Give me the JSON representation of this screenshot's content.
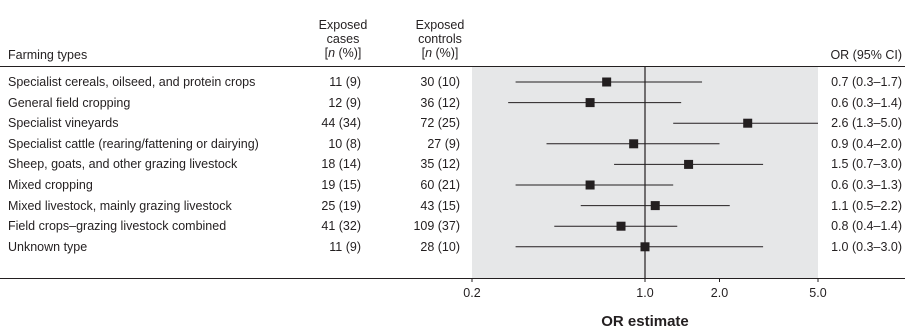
{
  "headers": {
    "farming_types": "Farming types",
    "cases_line1": "Exposed",
    "cases_line2": "cases",
    "controls_line1": "Exposed",
    "controls_line2": "controls",
    "n_pct_n": "n",
    "n_pct_open": "[",
    "n_pct_close": " (%)]",
    "or_ci": "OR (95% CI)"
  },
  "chart_data": {
    "type": "forest",
    "xlabel": "OR estimate",
    "x_scale": "log",
    "xlim": [
      0.2,
      5.0
    ],
    "ticks": [
      {
        "value": 0.2,
        "label": "0.2"
      },
      {
        "value": 1.0,
        "label": "1.0"
      },
      {
        "value": 2.0,
        "label": "2.0"
      },
      {
        "value": 5.0,
        "label": "5.0"
      }
    ],
    "reference_line": 1.0,
    "shaded_region": true,
    "rows": [
      {
        "label": "Specialist cereals, oilseed, and protein crops",
        "cases": "11 (9)",
        "controls": "30 (10)",
        "or_text": "0.7 (0.3–1.7)",
        "or": 0.7,
        "lo": 0.3,
        "hi": 1.7
      },
      {
        "label": "General field cropping",
        "cases": "12 (9)",
        "controls": "36 (12)",
        "or_text": "0.6 (0.3–1.4)",
        "or": 0.6,
        "lo": 0.28,
        "hi": 1.4
      },
      {
        "label": "Specialist vineyards",
        "cases": "44 (34)",
        "controls": "72 (25)",
        "or_text": "2.6 (1.3–5.0)",
        "or": 2.6,
        "lo": 1.3,
        "hi": 5.0
      },
      {
        "label": "Specialist cattle (rearing/fattening or dairying)",
        "cases": "10 (8)",
        "controls": "27 (9)",
        "or_text": "0.9 (0.4–2.0)",
        "or": 0.9,
        "lo": 0.4,
        "hi": 2.0
      },
      {
        "label": "Sheep, goats, and other grazing livestock",
        "cases": "18 (14)",
        "controls": "35 (12)",
        "or_text": "1.5 (0.7–3.0)",
        "or": 1.5,
        "lo": 0.75,
        "hi": 3.0
      },
      {
        "label": "Mixed cropping",
        "cases": "19 (15)",
        "controls": "60 (21)",
        "or_text": "0.6 (0.3–1.3)",
        "or": 0.6,
        "lo": 0.3,
        "hi": 1.3
      },
      {
        "label": "Mixed livestock, mainly grazing livestock",
        "cases": "25 (19)",
        "controls": "43 (15)",
        "or_text": "1.1 (0.5–2.2)",
        "or": 1.1,
        "lo": 0.55,
        "hi": 2.2
      },
      {
        "label": "Field crops–grazing livestock combined",
        "cases": "41 (32)",
        "controls": "109 (37)",
        "or_text": "0.8 (0.4–1.4)",
        "or": 0.8,
        "lo": 0.43,
        "hi": 1.35
      },
      {
        "label": "Unknown type",
        "cases": "11 (9)",
        "controls": "28 (10)",
        "or_text": "1.0 (0.3–3.0)",
        "or": 1.0,
        "lo": 0.3,
        "hi": 3.0
      }
    ]
  },
  "colors": {
    "text": "#231f20",
    "shade": "#e6e7e8",
    "marker": "#231f20"
  }
}
